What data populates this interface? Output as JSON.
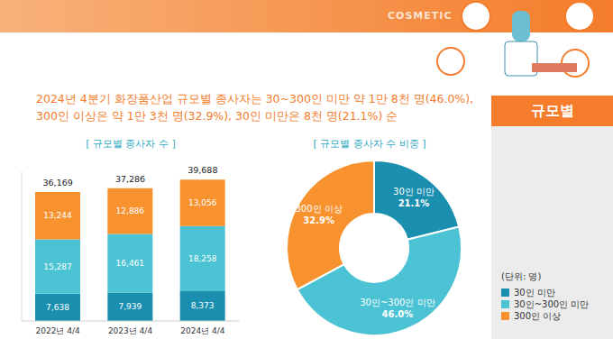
{
  "header": {
    "label": "COSMETIC"
  },
  "headline": "2024년 4분기 화장품산업 규모별 종사자는 30~300인 미만 약 1만 8천 명(46.0%), 300인 이상은 약 1만 3천 명(32.9%), 30인 미만은 8천 명(21.1%) 순",
  "side_label": "규모별",
  "unit": "(단위: 명)",
  "chart_data": [
    {
      "type": "bar",
      "title": "[ 규모별 종사자 수 ]",
      "categories": [
        "2022년 4/4",
        "2023년 4/4",
        "2024년 4/4"
      ],
      "stacked": true,
      "data_labels": true,
      "tick_labels": "x",
      "legend": "right",
      "ylim": [
        0,
        42000
      ],
      "series": [
        {
          "name": "30인 미만",
          "color": "#1a8fb0",
          "values": [
            7638,
            7939,
            8373
          ],
          "value_labels": [
            "7,638",
            "7,939",
            "8,373"
          ]
        },
        {
          "name": "30인~300인 미만",
          "color": "#4cc3d4",
          "values": [
            15287,
            16461,
            18258
          ],
          "value_labels": [
            "15,287",
            "16,461",
            "18,258"
          ]
        },
        {
          "name": "300인 이상",
          "color": "#f7922f",
          "values": [
            13244,
            12886,
            13056
          ],
          "value_labels": [
            "13,244",
            "12,886",
            "13,056"
          ]
        }
      ],
      "totals": {
        "values": [
          36169,
          37286,
          39688
        ],
        "value_labels": [
          "36,169",
          "37,286",
          "39,688"
        ]
      }
    },
    {
      "type": "pie",
      "title": "[ 규모별 종사자 수 비중 ]",
      "categories": [
        "30인 미만",
        "30인~300인 미만",
        "300인 이상"
      ],
      "values": [
        21.1,
        46.0,
        32.9
      ],
      "value_labels": [
        "21.1%",
        "46.0%",
        "32.9%"
      ],
      "colors": [
        "#1a8fb0",
        "#4cc3d4",
        "#f7922f"
      ],
      "data_labels": true
    }
  ]
}
